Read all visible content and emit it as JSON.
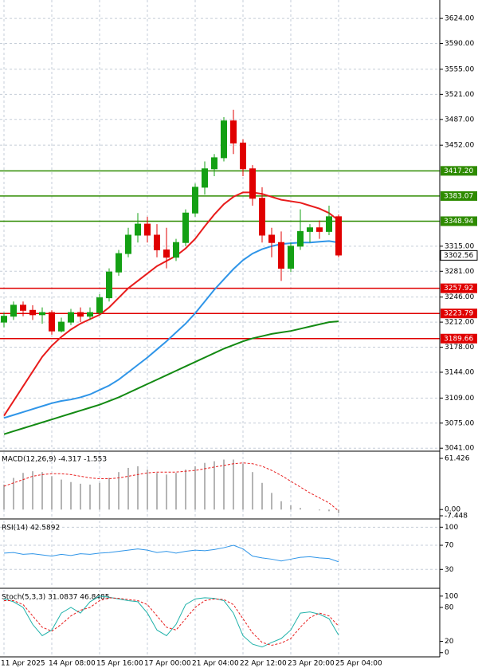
{
  "chart_data": [
    {
      "type": "candlestick",
      "up_color": "#14a014",
      "down_color": "#e00000",
      "categories": [
        "11 Apr 2025",
        null,
        null,
        null,
        null,
        "14 Apr 08:00",
        null,
        null,
        null,
        null,
        "15 Apr 16:00",
        null,
        null,
        null,
        null,
        "17 Apr 00:00",
        null,
        null,
        null,
        null,
        "21 Apr 04:00",
        null,
        null,
        null,
        null,
        "22 Apr 12:00",
        null,
        null,
        null,
        null,
        "23 Apr 20:00",
        null,
        null,
        null,
        null,
        "25 Apr 04:00"
      ],
      "open": [
        3212,
        3220,
        3235,
        3228,
        3222,
        3225,
        3200,
        3212,
        3225,
        3220,
        3225,
        3245,
        3280,
        3305,
        3330,
        3345,
        3330,
        3310,
        3300,
        3320,
        3360,
        3395,
        3420,
        3435,
        3485,
        3455,
        3420,
        3380,
        3330,
        3320,
        3285,
        3315,
        3335,
        3340,
        3335,
        3355
      ],
      "high": [
        3225,
        3240,
        3240,
        3235,
        3232,
        3228,
        3218,
        3230,
        3232,
        3232,
        3250,
        3285,
        3310,
        3340,
        3360,
        3355,
        3345,
        3340,
        3325,
        3365,
        3400,
        3430,
        3440,
        3490,
        3500,
        3460,
        3425,
        3395,
        3340,
        3335,
        3320,
        3365,
        3345,
        3350,
        3370,
        3358
      ],
      "low": [
        3205,
        3215,
        3220,
        3215,
        3210,
        3195,
        3198,
        3208,
        3212,
        3215,
        3222,
        3240,
        3275,
        3300,
        3320,
        3320,
        3300,
        3285,
        3295,
        3315,
        3355,
        3385,
        3410,
        3430,
        3440,
        3410,
        3370,
        3320,
        3300,
        3268,
        3280,
        3310,
        3320,
        3325,
        3330,
        3300
      ],
      "close": [
        3220,
        3235,
        3228,
        3222,
        3225,
        3200,
        3212,
        3225,
        3220,
        3225,
        3245,
        3280,
        3305,
        3330,
        3345,
        3330,
        3310,
        3300,
        3320,
        3360,
        3395,
        3420,
        3435,
        3485,
        3455,
        3420,
        3380,
        3330,
        3320,
        3285,
        3315,
        3335,
        3340,
        3335,
        3355,
        3303
      ],
      "series": [
        {
          "color": "#e81c1c",
          "values": [
            3085,
            3105,
            3125,
            3145,
            3165,
            3180,
            3192,
            3202,
            3210,
            3216,
            3222,
            3232,
            3245,
            3258,
            3268,
            3278,
            3288,
            3295,
            3302,
            3312,
            3325,
            3342,
            3358,
            3372,
            3382,
            3388,
            3388,
            3386,
            3382,
            3378,
            3376,
            3374,
            3370,
            3366,
            3360,
            3350
          ]
        },
        {
          "color": "#2f95e8",
          "values": [
            3082,
            3086,
            3090,
            3094,
            3098,
            3102,
            3105,
            3107,
            3110,
            3114,
            3120,
            3126,
            3134,
            3144,
            3154,
            3164,
            3175,
            3186,
            3198,
            3210,
            3224,
            3240,
            3256,
            3270,
            3284,
            3296,
            3305,
            3311,
            3315,
            3318,
            3319,
            3320,
            3320,
            3321,
            3322,
            3320
          ]
        },
        {
          "color": "#138a13",
          "values": [
            3060,
            3064,
            3068,
            3072,
            3076,
            3080,
            3084,
            3088,
            3092,
            3096,
            3100,
            3105,
            3110,
            3116,
            3122,
            3128,
            3134,
            3140,
            3146,
            3152,
            3158,
            3164,
            3170,
            3176,
            3181,
            3186,
            3190,
            3193,
            3196,
            3198,
            3200,
            3203,
            3206,
            3209,
            3212,
            3213
          ]
        }
      ],
      "levels": [
        {
          "value": 3417.2,
          "label": "3417.20",
          "color": "#2e8b00"
        },
        {
          "value": 3383.07,
          "label": "3383.07",
          "color": "#2e8b00"
        },
        {
          "value": 3348.94,
          "label": "3348.94",
          "color": "#2e8b00"
        },
        {
          "value": 3257.92,
          "label": "3257.92",
          "color": "#e00000"
        },
        {
          "value": 3223.79,
          "label": "3223.79",
          "color": "#e00000"
        },
        {
          "value": 3189.66,
          "label": "3189.66",
          "color": "#e00000"
        }
      ],
      "current_price": 3302.56,
      "ylim": [
        3038,
        3649
      ],
      "yticks": [
        {
          "value": 3624,
          "label": "3624.00"
        },
        {
          "value": 3590,
          "label": "3590.00"
        },
        {
          "value": 3555,
          "label": "3555.00"
        },
        {
          "value": 3521,
          "label": "3521.00"
        },
        {
          "value": 3487,
          "label": "3487.00"
        },
        {
          "value": 3452,
          "label": "3452.00"
        },
        {
          "value": 3315,
          "label": "3315.00"
        },
        {
          "value": 3281,
          "label": "3281.00"
        },
        {
          "value": 3246,
          "label": "3246.00"
        },
        {
          "value": 3212,
          "label": "3212.00"
        },
        {
          "value": 3178,
          "label": "3178.00"
        },
        {
          "value": 3144,
          "label": "3144.00"
        },
        {
          "value": 3109,
          "label": "3109.00"
        },
        {
          "value": 3075,
          "label": "3075.00"
        },
        {
          "value": 3041,
          "label": "3041.00"
        }
      ],
      "grid": true
    },
    {
      "type": "macd",
      "title": "MACD(12,26,9) -4.317 -1.553",
      "series": [
        {
          "color": "#b4b4b4",
          "values": [
            30,
            38,
            44,
            46,
            45,
            40,
            36,
            33,
            31,
            30,
            32,
            38,
            45,
            50,
            52,
            48,
            44,
            42,
            44,
            48,
            52,
            56,
            58,
            60,
            60,
            55,
            45,
            32,
            20,
            10,
            5,
            2,
            0,
            -1,
            -2,
            -4.317
          ]
        },
        {
          "color": "#e81c1c",
          "dashed": true,
          "values": [
            28,
            32,
            36,
            40,
            42,
            43,
            43,
            42,
            40,
            38,
            37,
            37,
            38,
            40,
            42,
            44,
            45,
            45,
            45,
            46,
            47,
            49,
            51,
            53,
            55,
            56,
            55,
            52,
            47,
            41,
            34,
            27,
            20,
            14,
            8,
            -1.553
          ]
        }
      ],
      "ylim": [
        -10.3,
        69.1
      ],
      "yticks": [
        61.426,
        {
          "value": 0,
          "label": "0.00"
        },
        -7.448
      ]
    },
    {
      "type": "line",
      "title": "RSI(14) 42.5892",
      "series": [
        {
          "color": "#2f95e8",
          "values": [
            57,
            58,
            55,
            56,
            54,
            52,
            55,
            53,
            56,
            55,
            57,
            58,
            60,
            62,
            64,
            62,
            58,
            60,
            57,
            60,
            62,
            61,
            63,
            66,
            70,
            64,
            52,
            49,
            47,
            44,
            47,
            50,
            51,
            49,
            48,
            42.5892
          ]
        }
      ],
      "ylim": [
        0,
        111
      ],
      "yticks": [
        100,
        70,
        30
      ],
      "grid": true
    },
    {
      "type": "line",
      "title": "Stoch(5,3,3) 31.0837 46.8485",
      "series": [
        {
          "color": "#20b2aa",
          "values": [
            95,
            90,
            80,
            50,
            30,
            40,
            70,
            80,
            70,
            90,
            100,
            98,
            95,
            92,
            90,
            70,
            40,
            30,
            50,
            85,
            95,
            97,
            96,
            92,
            70,
            30,
            15,
            10,
            18,
            25,
            40,
            70,
            72,
            68,
            60,
            31.0837
          ]
        },
        {
          "color": "#e81c1c",
          "dashed": true,
          "values": [
            92,
            92,
            85,
            65,
            45,
            38,
            50,
            65,
            75,
            80,
            92,
            97,
            96,
            94,
            92,
            85,
            65,
            45,
            40,
            60,
            80,
            92,
            95,
            94,
            85,
            60,
            35,
            18,
            13,
            17,
            25,
            45,
            62,
            70,
            65,
            46.8485
          ]
        }
      ],
      "ylim": [
        -6,
        111
      ],
      "yticks": [
        100,
        80,
        20,
        0
      ]
    }
  ]
}
